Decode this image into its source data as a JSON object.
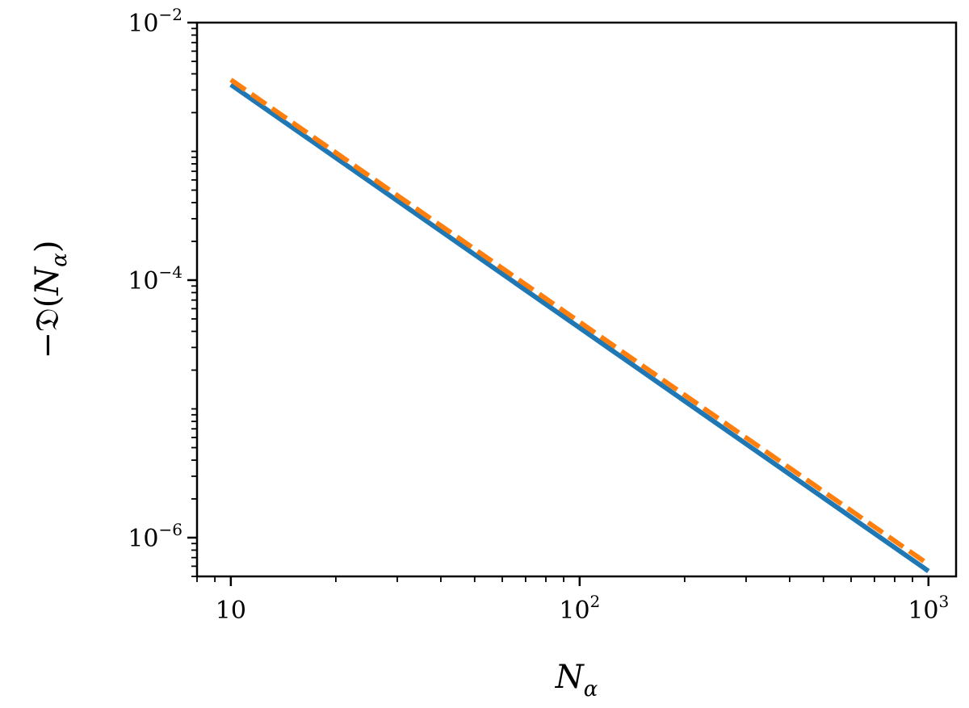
{
  "chart_data": {
    "type": "line",
    "xscale": "log",
    "yscale": "log",
    "xlim": [
      8,
      1200
    ],
    "ylim": [
      5e-07,
      0.01
    ],
    "xlabel": {
      "main": "N",
      "sub": "α"
    },
    "ylabel": {
      "pre": "−𝔇(",
      "main": "N",
      "sub": "α",
      "post": ")"
    },
    "xticks": [
      {
        "value": 10,
        "base": "10",
        "exp": ""
      },
      {
        "value": 100,
        "base": "10",
        "exp": "2"
      },
      {
        "value": 1000,
        "base": "10",
        "exp": "3"
      }
    ],
    "yticks": [
      {
        "value": 1e-06,
        "base": "10",
        "exp": "−6"
      },
      {
        "value": 0.0001,
        "base": "10",
        "exp": "−4"
      },
      {
        "value": 0.01,
        "base": "10",
        "exp": "−2"
      }
    ],
    "grid": false,
    "series": [
      {
        "style": "solid",
        "color": "#1f77b4",
        "x": [
          10,
          1000
        ],
        "y": [
          0.0033,
          5.5e-07
        ]
      },
      {
        "style": "dashed",
        "color": "#ff7f0e",
        "x": [
          10,
          1000
        ],
        "y": [
          0.0036,
          6.2e-07
        ]
      }
    ]
  }
}
